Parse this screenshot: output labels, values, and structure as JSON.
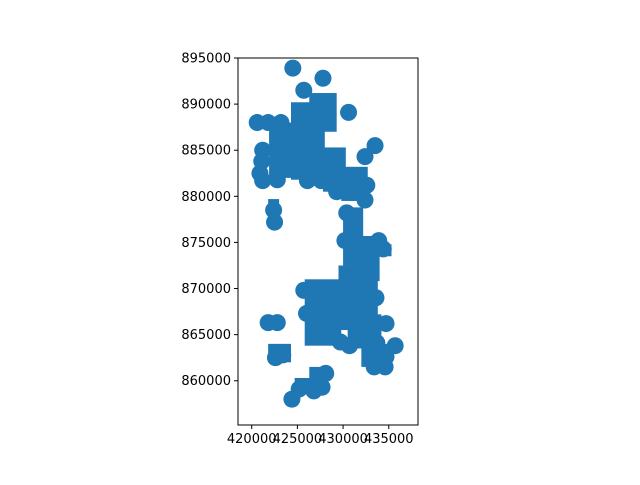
{
  "chart_data": {
    "type": "scatter",
    "title": "",
    "xlabel": "",
    "ylabel": "",
    "xlim": [
      418500,
      438200
    ],
    "ylim": [
      855200,
      895000
    ],
    "x_ticks": [
      420000,
      425000,
      430000,
      435000
    ],
    "y_ticks": [
      860000,
      865000,
      870000,
      875000,
      880000,
      885000,
      890000,
      895000
    ],
    "x_tick_labels": [
      "420000",
      "425000",
      "430000",
      "435000"
    ],
    "y_tick_labels": [
      "860000",
      "865000",
      "870000",
      "875000",
      "880000",
      "885000",
      "890000",
      "895000"
    ],
    "grid": false,
    "legend": "none",
    "color": "#1f77b4",
    "blocks": [
      {
        "x0": 421900,
        "x1": 424600,
        "y0": 882000,
        "y1": 888000
      },
      {
        "x0": 424300,
        "x1": 428000,
        "y0": 881800,
        "y1": 890200
      },
      {
        "x0": 426300,
        "x1": 429300,
        "y0": 887000,
        "y1": 891200
      },
      {
        "x0": 427800,
        "x1": 430300,
        "y0": 880500,
        "y1": 885300
      },
      {
        "x0": 429800,
        "x1": 432700,
        "y0": 879500,
        "y1": 883200
      },
      {
        "x0": 421800,
        "x1": 423000,
        "y0": 877200,
        "y1": 879700
      },
      {
        "x0": 430000,
        "x1": 432200,
        "y0": 872500,
        "y1": 878800
      },
      {
        "x0": 431500,
        "x1": 434000,
        "y0": 870800,
        "y1": 875700
      },
      {
        "x0": 433700,
        "x1": 435300,
        "y0": 873500,
        "y1": 874800
      },
      {
        "x0": 425800,
        "x1": 429800,
        "y0": 863800,
        "y1": 871000
      },
      {
        "x0": 429500,
        "x1": 433800,
        "y0": 865500,
        "y1": 872500
      },
      {
        "x0": 430500,
        "x1": 434200,
        "y0": 863500,
        "y1": 867200
      },
      {
        "x0": 421800,
        "x1": 424300,
        "y0": 862000,
        "y1": 864000
      },
      {
        "x0": 424700,
        "x1": 427600,
        "y0": 858600,
        "y1": 860300
      },
      {
        "x0": 426300,
        "x1": 428300,
        "y0": 858800,
        "y1": 861500
      },
      {
        "x0": 432000,
        "x1": 434800,
        "y0": 861500,
        "y1": 864000
      }
    ],
    "points": [
      [
        424500,
        893900
      ],
      [
        427800,
        892800
      ],
      [
        425700,
        891500
      ],
      [
        430600,
        889100
      ],
      [
        420600,
        888000
      ],
      [
        421800,
        888000
      ],
      [
        423200,
        888000
      ],
      [
        421200,
        885000
      ],
      [
        421100,
        883800
      ],
      [
        420900,
        882500
      ],
      [
        421200,
        881700
      ],
      [
        422800,
        881800
      ],
      [
        426100,
        881700
      ],
      [
        427600,
        881700
      ],
      [
        433500,
        885500
      ],
      [
        432400,
        884300
      ],
      [
        429300,
        880500
      ],
      [
        431000,
        880400
      ],
      [
        432600,
        881200
      ],
      [
        432400,
        879600
      ],
      [
        422400,
        878500
      ],
      [
        422500,
        877200
      ],
      [
        430400,
        878200
      ],
      [
        430200,
        875200
      ],
      [
        433900,
        875200
      ],
      [
        434400,
        874300
      ],
      [
        429800,
        869800
      ],
      [
        433600,
        869000
      ],
      [
        425700,
        869800
      ],
      [
        426000,
        867300
      ],
      [
        421800,
        866300
      ],
      [
        422800,
        866300
      ],
      [
        434700,
        866200
      ],
      [
        429700,
        864200
      ],
      [
        430700,
        863800
      ],
      [
        433700,
        864100
      ],
      [
        435700,
        863800
      ],
      [
        434700,
        862600
      ],
      [
        433400,
        861500
      ],
      [
        434600,
        861500
      ],
      [
        422600,
        862500
      ],
      [
        423400,
        862800
      ],
      [
        424400,
        858000
      ],
      [
        425200,
        859100
      ],
      [
        426800,
        858900
      ],
      [
        427700,
        859300
      ],
      [
        428100,
        860800
      ]
    ]
  }
}
